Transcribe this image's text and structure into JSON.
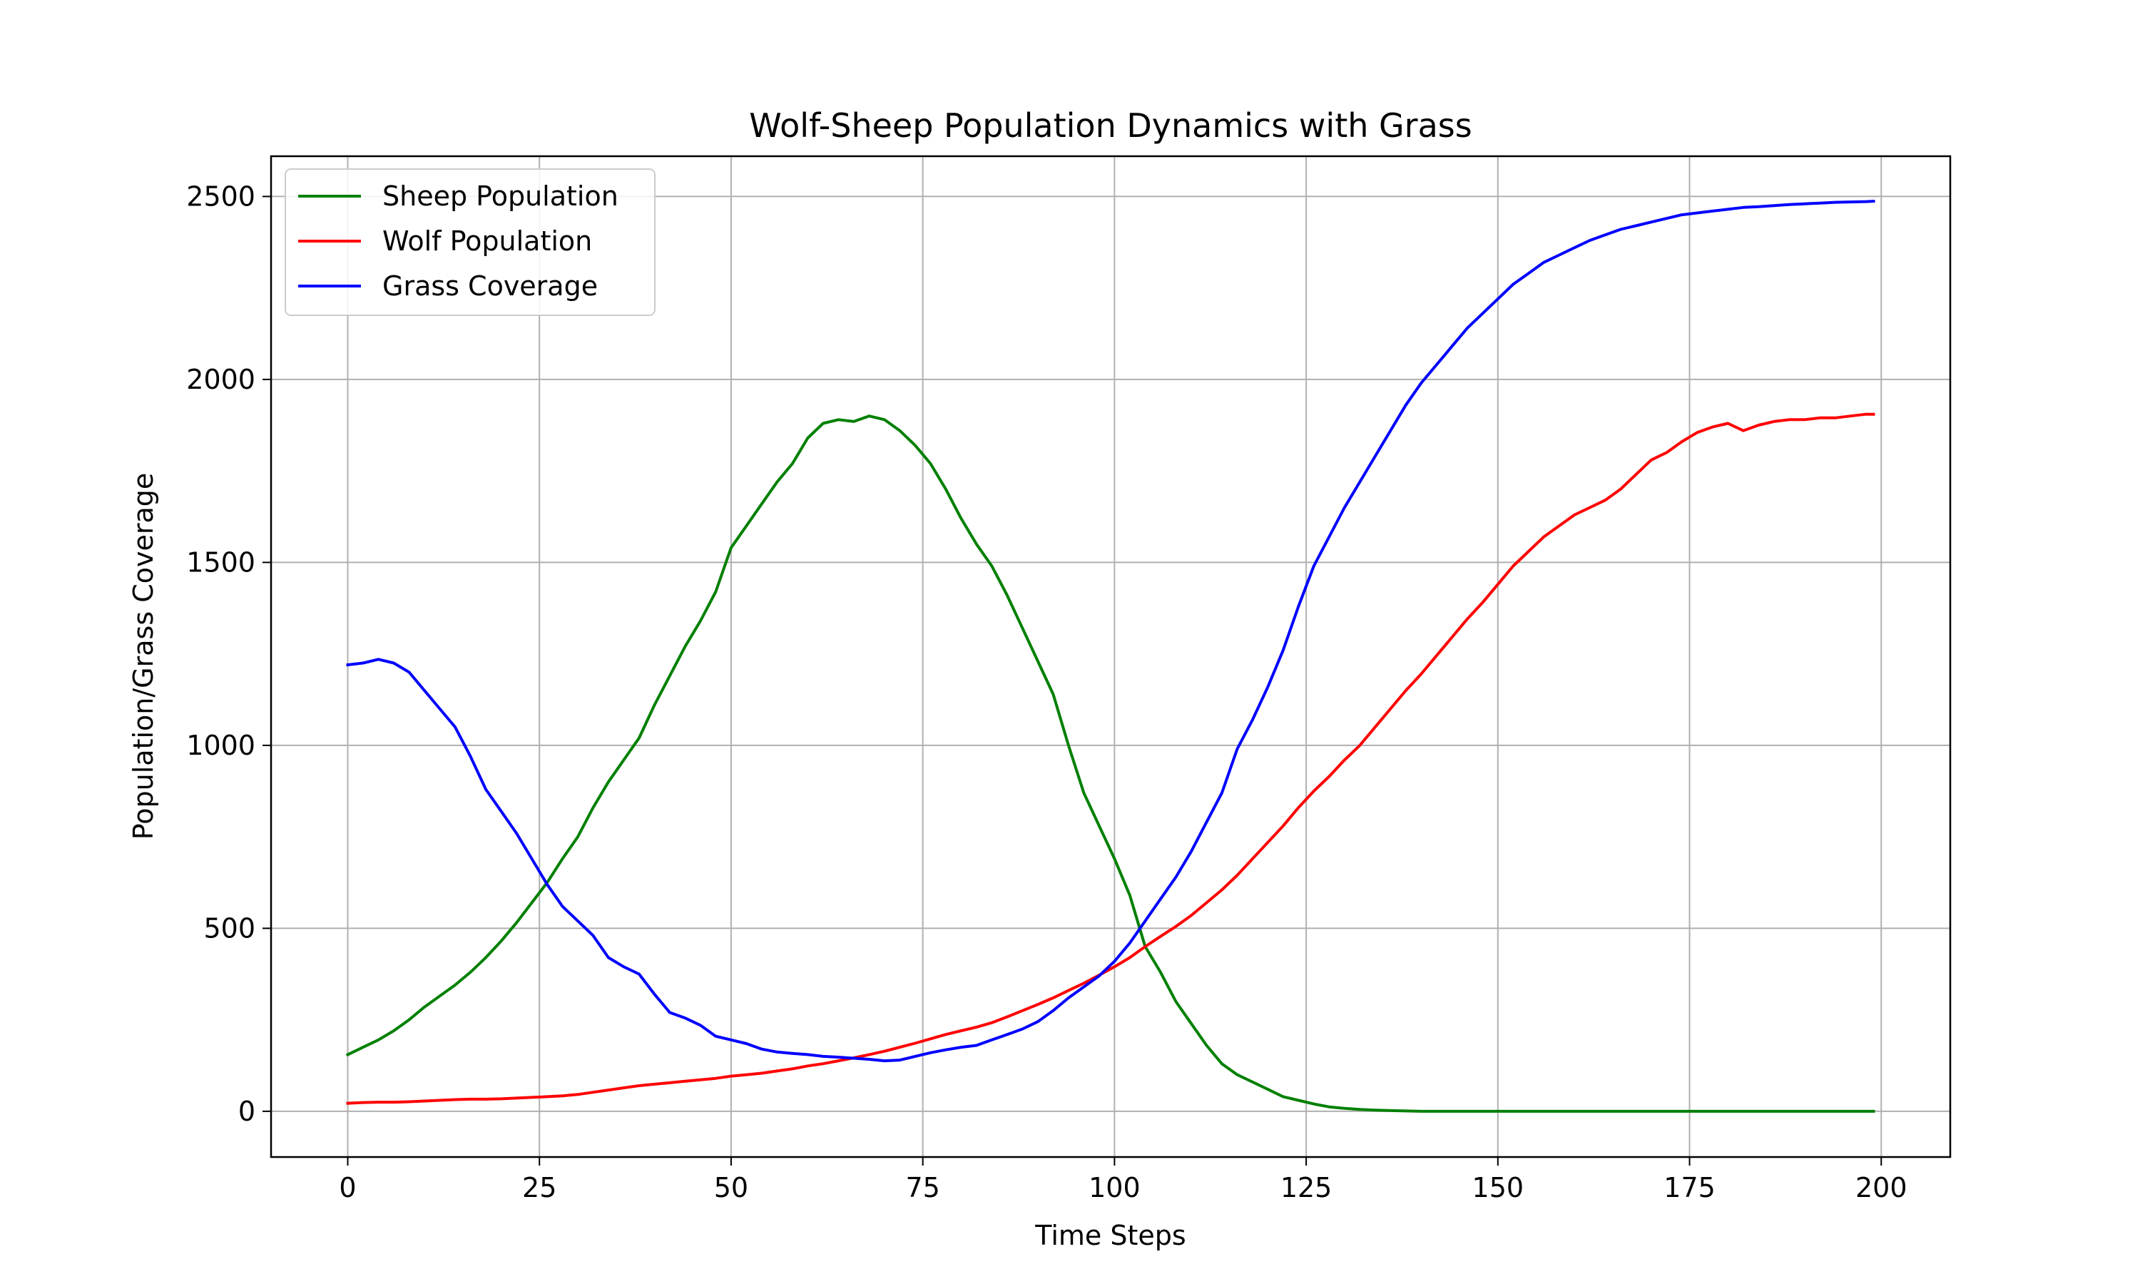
{
  "chart_data": {
    "type": "line",
    "title": "Wolf-Sheep Population Dynamics with Grass",
    "xlabel": "Time Steps",
    "ylabel": "Population/Grass Coverage",
    "xlim": [
      -10,
      209
    ],
    "ylim": [
      -125,
      2610
    ],
    "xticks": [
      0,
      25,
      50,
      75,
      100,
      125,
      150,
      175,
      200
    ],
    "yticks": [
      0,
      500,
      1000,
      1500,
      2000,
      2500
    ],
    "grid": true,
    "legend_position": "top-left",
    "x": [
      0,
      2,
      4,
      6,
      8,
      10,
      12,
      14,
      16,
      18,
      20,
      22,
      24,
      26,
      28,
      30,
      32,
      34,
      36,
      38,
      40,
      42,
      44,
      46,
      48,
      50,
      52,
      54,
      56,
      58,
      60,
      62,
      64,
      66,
      68,
      70,
      72,
      74,
      76,
      78,
      80,
      82,
      84,
      86,
      88,
      90,
      92,
      94,
      96,
      98,
      100,
      102,
      104,
      106,
      108,
      110,
      112,
      114,
      116,
      118,
      120,
      122,
      124,
      126,
      128,
      130,
      132,
      134,
      136,
      138,
      140,
      142,
      144,
      146,
      148,
      150,
      152,
      154,
      156,
      158,
      160,
      162,
      164,
      166,
      168,
      170,
      172,
      174,
      176,
      178,
      180,
      182,
      184,
      186,
      188,
      190,
      192,
      194,
      196,
      198,
      199
    ],
    "series": [
      {
        "name": "Sheep Population",
        "color": "#008000",
        "values": [
          155,
          175,
          195,
          220,
          250,
          285,
          315,
          345,
          380,
          420,
          465,
          515,
          570,
          625,
          690,
          750,
          830,
          900,
          960,
          1020,
          1110,
          1190,
          1270,
          1340,
          1420,
          1540,
          1600,
          1660,
          1720,
          1770,
          1840,
          1880,
          1890,
          1885,
          1900,
          1890,
          1860,
          1820,
          1770,
          1700,
          1620,
          1550,
          1490,
          1410,
          1320,
          1230,
          1140,
          1000,
          870,
          780,
          690,
          590,
          450,
          380,
          300,
          240,
          180,
          130,
          100,
          80,
          60,
          40,
          30,
          20,
          12,
          8,
          5,
          3,
          2,
          1,
          0,
          0,
          0,
          0,
          0,
          0,
          0,
          0,
          0,
          0,
          0,
          0,
          0,
          0,
          0,
          0,
          0,
          0,
          0,
          0,
          0,
          0,
          0,
          0,
          0,
          0,
          0,
          0,
          0,
          0,
          0
        ]
      },
      {
        "name": "Wolf Population",
        "color": "#ff0000",
        "values": [
          22,
          24,
          25,
          25,
          26,
          28,
          30,
          32,
          33,
          33,
          34,
          36,
          38,
          40,
          42,
          46,
          52,
          58,
          64,
          70,
          74,
          78,
          82,
          86,
          90,
          96,
          100,
          104,
          110,
          116,
          124,
          130,
          138,
          146,
          155,
          164,
          175,
          186,
          198,
          210,
          220,
          230,
          242,
          258,
          275,
          292,
          310,
          330,
          350,
          372,
          395,
          420,
          450,
          478,
          505,
          535,
          570,
          605,
          645,
          690,
          735,
          780,
          830,
          875,
          915,
          960,
          1000,
          1050,
          1100,
          1150,
          1195,
          1245,
          1295,
          1345,
          1390,
          1440,
          1490,
          1530,
          1570,
          1600,
          1630,
          1650,
          1670,
          1700,
          1740,
          1780,
          1800,
          1830,
          1855,
          1870,
          1880,
          1860,
          1875,
          1885,
          1890,
          1890,
          1895,
          1895,
          1900,
          1905,
          1905
        ]
      },
      {
        "name": "Grass Coverage",
        "color": "#0000ff",
        "values": [
          1220,
          1225,
          1235,
          1225,
          1200,
          1150,
          1100,
          1050,
          970,
          880,
          820,
          760,
          690,
          620,
          560,
          520,
          480,
          420,
          395,
          375,
          320,
          270,
          255,
          235,
          205,
          195,
          185,
          170,
          162,
          158,
          155,
          150,
          148,
          145,
          142,
          138,
          140,
          150,
          160,
          168,
          175,
          180,
          195,
          210,
          225,
          245,
          275,
          310,
          340,
          370,
          410,
          460,
          520,
          580,
          640,
          710,
          790,
          870,
          990,
          1070,
          1160,
          1260,
          1380,
          1490,
          1570,
          1650,
          1720,
          1790,
          1860,
          1930,
          1990,
          2040,
          2090,
          2140,
          2180,
          2220,
          2260,
          2290,
          2320,
          2340,
          2360,
          2380,
          2395,
          2410,
          2420,
          2430,
          2440,
          2450,
          2455,
          2460,
          2465,
          2470,
          2472,
          2475,
          2478,
          2480,
          2482,
          2484,
          2485,
          2486,
          2487
        ]
      }
    ]
  }
}
